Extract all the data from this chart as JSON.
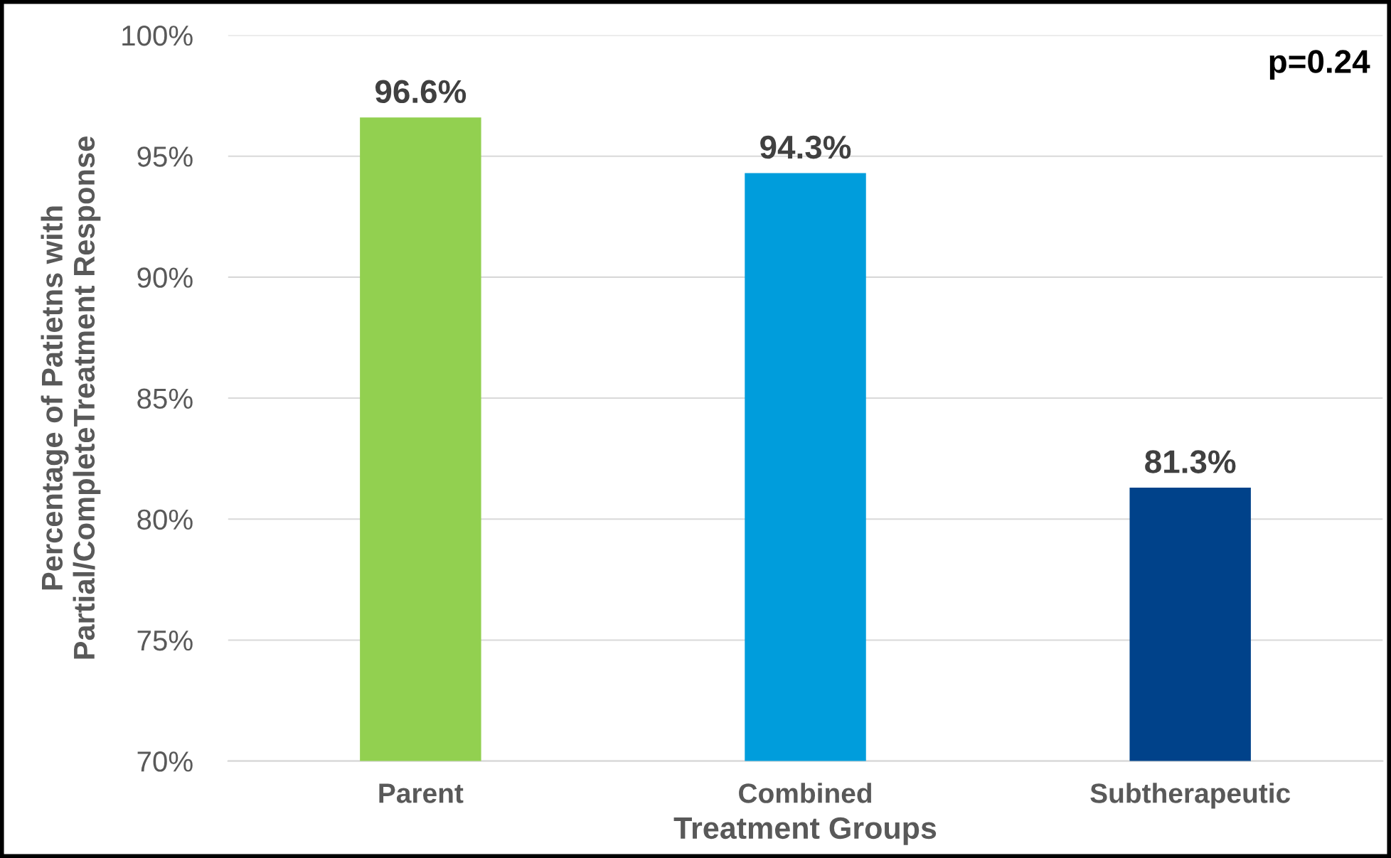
{
  "chart_data": {
    "type": "bar",
    "xlabel": "Treatment Groups",
    "ylabel": "Percentage of Patietns with\nPartial/CompleteTreatment Response",
    "categories": [
      "Parent",
      "Combined",
      "Subtherapeutic"
    ],
    "values": [
      96.6,
      94.3,
      81.3
    ],
    "colors": [
      "#92d050",
      "#009ddc",
      "#00428a"
    ],
    "value_labels": [
      "96.6%",
      "94.3%",
      "81.3%"
    ],
    "ylim": [
      70,
      100
    ],
    "yticks": [
      {
        "value": 70,
        "label": "70%"
      },
      {
        "value": 75,
        "label": "75%"
      },
      {
        "value": 80,
        "label": "80%"
      },
      {
        "value": 85,
        "label": "85%"
      },
      {
        "value": 90,
        "label": "90%"
      },
      {
        "value": 95,
        "label": "95%"
      },
      {
        "value": 100,
        "label": "100%"
      }
    ],
    "grid": "y",
    "legend": false,
    "annotations": [
      "p=0.24"
    ]
  }
}
